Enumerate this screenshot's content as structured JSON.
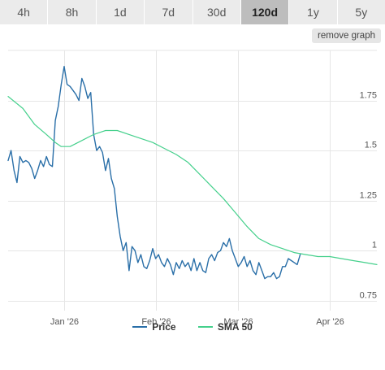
{
  "tabs": [
    {
      "label": "4h",
      "active": false
    },
    {
      "label": "8h",
      "active": false
    },
    {
      "label": "1d",
      "active": false
    },
    {
      "label": "7d",
      "active": false
    },
    {
      "label": "30d",
      "active": false
    },
    {
      "label": "120d",
      "active": true
    },
    {
      "label": "1y",
      "active": false
    },
    {
      "label": "5y",
      "active": false
    }
  ],
  "remove_graph_label": "remove graph",
  "chart_data": {
    "type": "line",
    "title": "",
    "xlabel": "",
    "ylabel": "",
    "x_ticks": [
      {
        "label": "Jan '26",
        "day": 22
      },
      {
        "label": "Feb '26",
        "day": 53
      },
      {
        "label": "Mar '26",
        "day": 81
      },
      {
        "label": "Apr '26",
        "day": 112
      }
    ],
    "y_ticks": [
      0.75,
      1,
      1.25,
      1.5,
      1.75
    ],
    "ylim": [
      0.7,
      2.0
    ],
    "xlim": [
      3,
      128
    ],
    "grid": true,
    "legend": "bottom",
    "series": [
      {
        "name": "Price",
        "color": "#2a6fa8",
        "points": [
          [
            3,
            1.45
          ],
          [
            4,
            1.5
          ],
          [
            5,
            1.4
          ],
          [
            6,
            1.34
          ],
          [
            7,
            1.47
          ],
          [
            8,
            1.44
          ],
          [
            9,
            1.45
          ],
          [
            10,
            1.44
          ],
          [
            11,
            1.41
          ],
          [
            12,
            1.36
          ],
          [
            13,
            1.4
          ],
          [
            14,
            1.45
          ],
          [
            15,
            1.42
          ],
          [
            16,
            1.47
          ],
          [
            17,
            1.43
          ],
          [
            18,
            1.42
          ],
          [
            19,
            1.65
          ],
          [
            20,
            1.72
          ],
          [
            21,
            1.83
          ],
          [
            22,
            1.92
          ],
          [
            23,
            1.83
          ],
          [
            24,
            1.82
          ],
          [
            25,
            1.8
          ],
          [
            26,
            1.78
          ],
          [
            27,
            1.75
          ],
          [
            28,
            1.86
          ],
          [
            29,
            1.82
          ],
          [
            30,
            1.76
          ],
          [
            31,
            1.79
          ],
          [
            32,
            1.58
          ],
          [
            33,
            1.5
          ],
          [
            34,
            1.52
          ],
          [
            35,
            1.49
          ],
          [
            36,
            1.4
          ],
          [
            37,
            1.46
          ],
          [
            38,
            1.36
          ],
          [
            39,
            1.31
          ],
          [
            40,
            1.17
          ],
          [
            41,
            1.07
          ],
          [
            42,
            1.0
          ],
          [
            43,
            1.04
          ],
          [
            44,
            0.9
          ],
          [
            45,
            1.02
          ],
          [
            46,
            1.0
          ],
          [
            47,
            0.94
          ],
          [
            48,
            0.98
          ],
          [
            49,
            0.92
          ],
          [
            50,
            0.91
          ],
          [
            51,
            0.95
          ],
          [
            52,
            1.01
          ],
          [
            53,
            0.96
          ],
          [
            54,
            0.98
          ],
          [
            55,
            0.94
          ],
          [
            56,
            0.92
          ],
          [
            57,
            0.96
          ],
          [
            58,
            0.93
          ],
          [
            59,
            0.88
          ],
          [
            60,
            0.94
          ],
          [
            61,
            0.91
          ],
          [
            62,
            0.95
          ],
          [
            63,
            0.92
          ],
          [
            64,
            0.94
          ],
          [
            65,
            0.9
          ],
          [
            66,
            0.96
          ],
          [
            67,
            0.9
          ],
          [
            68,
            0.94
          ],
          [
            69,
            0.9
          ],
          [
            70,
            0.89
          ],
          [
            71,
            0.96
          ],
          [
            72,
            0.98
          ],
          [
            73,
            0.95
          ],
          [
            74,
            0.99
          ],
          [
            75,
            1.0
          ],
          [
            76,
            1.04
          ],
          [
            77,
            1.02
          ],
          [
            78,
            1.06
          ],
          [
            79,
            1.0
          ],
          [
            80,
            0.96
          ],
          [
            81,
            0.92
          ],
          [
            82,
            0.94
          ],
          [
            83,
            0.97
          ],
          [
            84,
            0.92
          ],
          [
            85,
            0.95
          ],
          [
            86,
            0.9
          ],
          [
            87,
            0.88
          ],
          [
            88,
            0.94
          ],
          [
            89,
            0.9
          ],
          [
            90,
            0.86
          ],
          [
            91,
            0.87
          ],
          [
            92,
            0.87
          ],
          [
            93,
            0.89
          ],
          [
            94,
            0.86
          ],
          [
            95,
            0.87
          ],
          [
            96,
            0.92
          ],
          [
            97,
            0.92
          ],
          [
            98,
            0.96
          ],
          [
            99,
            0.95
          ],
          [
            100,
            0.94
          ],
          [
            101,
            0.93
          ],
          [
            102,
            0.98
          ]
        ]
      },
      {
        "name": "SMA 50",
        "color": "#45d08c",
        "points": [
          [
            3,
            1.77
          ],
          [
            8,
            1.71
          ],
          [
            12,
            1.63
          ],
          [
            16,
            1.58
          ],
          [
            19,
            1.54
          ],
          [
            21,
            1.52
          ],
          [
            24,
            1.52
          ],
          [
            28,
            1.55
          ],
          [
            32,
            1.58
          ],
          [
            36,
            1.6
          ],
          [
            40,
            1.6
          ],
          [
            44,
            1.58
          ],
          [
            48,
            1.56
          ],
          [
            52,
            1.54
          ],
          [
            56,
            1.51
          ],
          [
            60,
            1.48
          ],
          [
            64,
            1.44
          ],
          [
            68,
            1.38
          ],
          [
            72,
            1.32
          ],
          [
            76,
            1.26
          ],
          [
            80,
            1.19
          ],
          [
            84,
            1.12
          ],
          [
            88,
            1.06
          ],
          [
            92,
            1.03
          ],
          [
            96,
            1.01
          ],
          [
            100,
            0.99
          ],
          [
            104,
            0.98
          ],
          [
            108,
            0.97
          ],
          [
            112,
            0.97
          ],
          [
            116,
            0.96
          ],
          [
            120,
            0.95
          ],
          [
            124,
            0.94
          ],
          [
            128,
            0.93
          ]
        ]
      }
    ]
  }
}
